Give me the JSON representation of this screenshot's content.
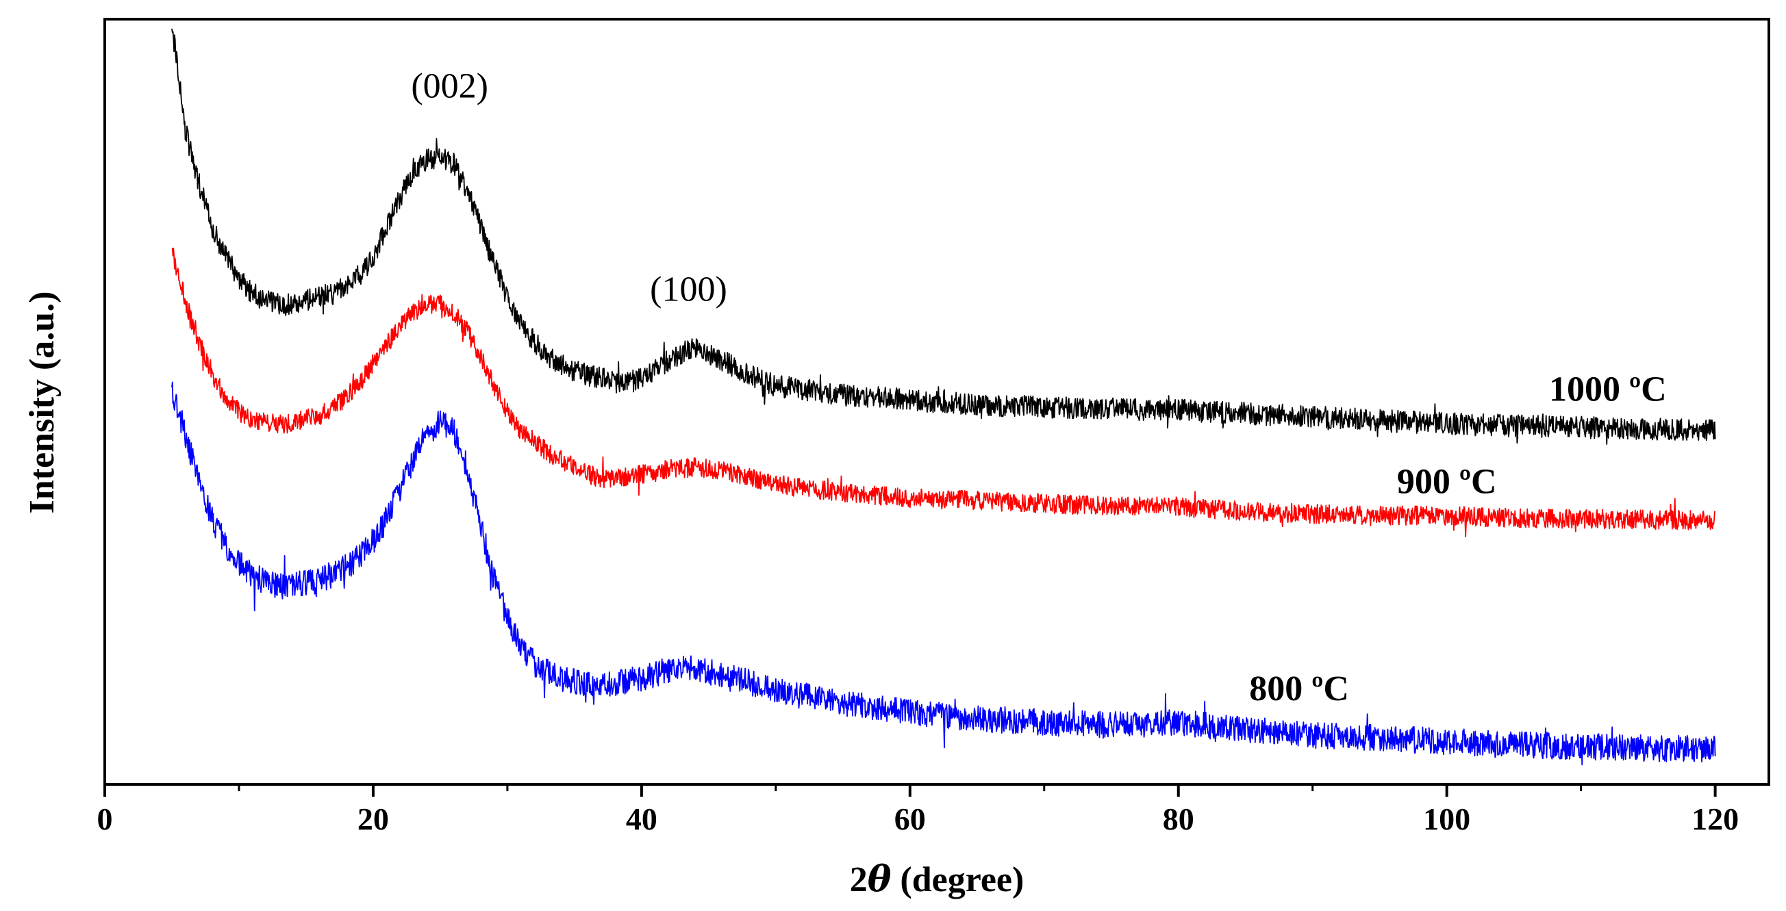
{
  "chart_data": {
    "type": "line",
    "title": "",
    "xlabel_prefix": "2",
    "xlabel_symbol": "θ",
    "xlabel_suffix": " (degree)",
    "ylabel": "Intensity (a.u.)",
    "xlim": [
      0,
      124
    ],
    "ylim": [
      0,
      100
    ],
    "x_ticks": [
      0,
      20,
      40,
      60,
      80,
      100,
      120
    ],
    "x_tick_labels": [
      "0",
      "20",
      "40",
      "60",
      "80",
      "100",
      "120"
    ],
    "x_minor_ticks": [
      10,
      30,
      50,
      70,
      90,
      110
    ],
    "y_ticks_shown": false,
    "legend": "none",
    "series": [
      {
        "name": "1000 ºC",
        "label": "1000 ºC",
        "color": "#000000",
        "noise": 1.5,
        "points": [
          [
            5,
            100
          ],
          [
            5.5,
            94
          ],
          [
            6,
            86
          ],
          [
            7,
            79
          ],
          [
            8,
            73
          ],
          [
            9,
            69
          ],
          [
            10,
            66
          ],
          [
            11,
            64
          ],
          [
            12,
            63
          ],
          [
            13,
            62.5
          ],
          [
            14,
            62.5
          ],
          [
            15,
            63
          ],
          [
            16,
            63.5
          ],
          [
            17,
            64
          ],
          [
            18,
            65
          ],
          [
            19,
            66.5
          ],
          [
            20,
            69
          ],
          [
            21,
            73
          ],
          [
            22,
            77
          ],
          [
            23,
            80.5
          ],
          [
            24,
            82
          ],
          [
            25,
            82.5
          ],
          [
            26,
            81.5
          ],
          [
            27,
            78
          ],
          [
            28,
            73
          ],
          [
            29,
            68
          ],
          [
            30,
            63.5
          ],
          [
            31,
            60
          ],
          [
            32,
            57.5
          ],
          [
            33,
            55.5
          ],
          [
            34,
            54.5
          ],
          [
            35,
            53.5
          ],
          [
            36,
            53
          ],
          [
            37,
            52.5
          ],
          [
            38,
            52
          ],
          [
            39,
            52
          ],
          [
            40,
            52.5
          ],
          [
            41,
            53.5
          ],
          [
            42,
            55
          ],
          [
            43,
            56
          ],
          [
            44,
            56.5
          ],
          [
            45,
            56
          ],
          [
            46,
            55
          ],
          [
            47,
            54
          ],
          [
            48,
            53
          ],
          [
            50,
            51.5
          ],
          [
            55,
            50.3
          ],
          [
            60,
            49.6
          ],
          [
            65,
            49
          ],
          [
            70,
            48.6
          ],
          [
            75,
            48.4
          ],
          [
            80,
            48.2
          ],
          [
            85,
            47.8
          ],
          [
            90,
            47.3
          ],
          [
            95,
            46.8
          ],
          [
            100,
            46.4
          ],
          [
            105,
            46.1
          ],
          [
            110,
            45.9
          ],
          [
            115,
            45.7
          ],
          [
            120,
            45.5
          ]
        ]
      },
      {
        "name": "900 ºC",
        "label": "900 ºC",
        "color": "#ff0000",
        "noise": 1.3,
        "points": [
          [
            5,
            70
          ],
          [
            6,
            63
          ],
          [
            7,
            57.5
          ],
          [
            8,
            53
          ],
          [
            9,
            50
          ],
          [
            10,
            48
          ],
          [
            11,
            47
          ],
          [
            12,
            46.5
          ],
          [
            13,
            46.3
          ],
          [
            14,
            46.5
          ],
          [
            15,
            47
          ],
          [
            16,
            47.5
          ],
          [
            17,
            48.5
          ],
          [
            18,
            50
          ],
          [
            19,
            52
          ],
          [
            20,
            54.5
          ],
          [
            21,
            57
          ],
          [
            22,
            59.5
          ],
          [
            23,
            61.5
          ],
          [
            24,
            62.5
          ],
          [
            25,
            62.5
          ],
          [
            26,
            61.5
          ],
          [
            27,
            59
          ],
          [
            28,
            55.5
          ],
          [
            29,
            51.5
          ],
          [
            30,
            48
          ],
          [
            31,
            45.5
          ],
          [
            32,
            44
          ],
          [
            33,
            42.5
          ],
          [
            34,
            41.5
          ],
          [
            35,
            40.5
          ],
          [
            36,
            39.5
          ],
          [
            37,
            39
          ],
          [
            38,
            39
          ],
          [
            40,
            39.5
          ],
          [
            42,
            40.2
          ],
          [
            44,
            40.5
          ],
          [
            46,
            40
          ],
          [
            48,
            39.2
          ],
          [
            50,
            38.2
          ],
          [
            55,
            37
          ],
          [
            60,
            36.3
          ],
          [
            65,
            36
          ],
          [
            70,
            35.6
          ],
          [
            75,
            35.2
          ],
          [
            80,
            35.2
          ],
          [
            85,
            34.5
          ],
          [
            90,
            34.2
          ],
          [
            95,
            34
          ],
          [
            100,
            33.9
          ],
          [
            105,
            33.6
          ],
          [
            110,
            33.5
          ],
          [
            115,
            33.4
          ],
          [
            120,
            33.3
          ]
        ]
      },
      {
        "name": "800 ºC",
        "label": "800 ºC",
        "color": "#0000ff",
        "noise": 1.8,
        "points": [
          [
            5,
            51
          ],
          [
            6,
            45
          ],
          [
            7,
            38.5
          ],
          [
            8,
            33.5
          ],
          [
            9,
            30
          ],
          [
            10,
            27.5
          ],
          [
            11,
            26
          ],
          [
            12,
            25
          ],
          [
            13,
            24.5
          ],
          [
            14,
            24.5
          ],
          [
            15,
            24.8
          ],
          [
            16,
            25.3
          ],
          [
            17,
            26
          ],
          [
            18,
            27
          ],
          [
            19,
            28.5
          ],
          [
            20,
            30.5
          ],
          [
            21,
            33.5
          ],
          [
            22,
            37.5
          ],
          [
            23,
            41.5
          ],
          [
            24,
            45
          ],
          [
            25,
            46.5
          ],
          [
            26,
            45.5
          ],
          [
            27,
            40.5
          ],
          [
            28,
            32.5
          ],
          [
            29,
            25.5
          ],
          [
            30,
            20
          ],
          [
            31,
            16.5
          ],
          [
            32,
            14
          ],
          [
            33,
            12.8
          ],
          [
            34,
            12
          ],
          [
            35,
            11.5
          ],
          [
            36,
            11.3
          ],
          [
            37,
            11.1
          ],
          [
            38,
            11.2
          ],
          [
            40,
            12
          ],
          [
            42,
            13
          ],
          [
            43,
            13.5
          ],
          [
            44,
            13.3
          ],
          [
            46,
            12.5
          ],
          [
            48,
            11.5
          ],
          [
            50,
            10.3
          ],
          [
            55,
            8.6
          ],
          [
            60,
            7.3
          ],
          [
            65,
            6.5
          ],
          [
            70,
            6
          ],
          [
            75,
            5.6
          ],
          [
            78,
            5.8
          ],
          [
            80,
            6
          ],
          [
            82,
            5.6
          ],
          [
            85,
            5
          ],
          [
            90,
            4.3
          ],
          [
            95,
            3.8
          ],
          [
            100,
            3.4
          ],
          [
            105,
            3
          ],
          [
            110,
            2.7
          ],
          [
            115,
            2.5
          ],
          [
            120,
            2.4
          ]
        ]
      }
    ],
    "series_labels": [
      {
        "text": "1000 ºC",
        "x": 112,
        "y": 49.5,
        "color": "#000000"
      },
      {
        "text": "900 ºC",
        "x": 100,
        "y": 37,
        "color": "#000000"
      },
      {
        "text": "800 ºC",
        "x": 89,
        "y": 9,
        "color": "#000000"
      }
    ],
    "annotations": [
      {
        "text": "(002)",
        "x": 25.7,
        "y": 90.5
      },
      {
        "text": "(100)",
        "x": 43.5,
        "y": 63
      }
    ]
  }
}
